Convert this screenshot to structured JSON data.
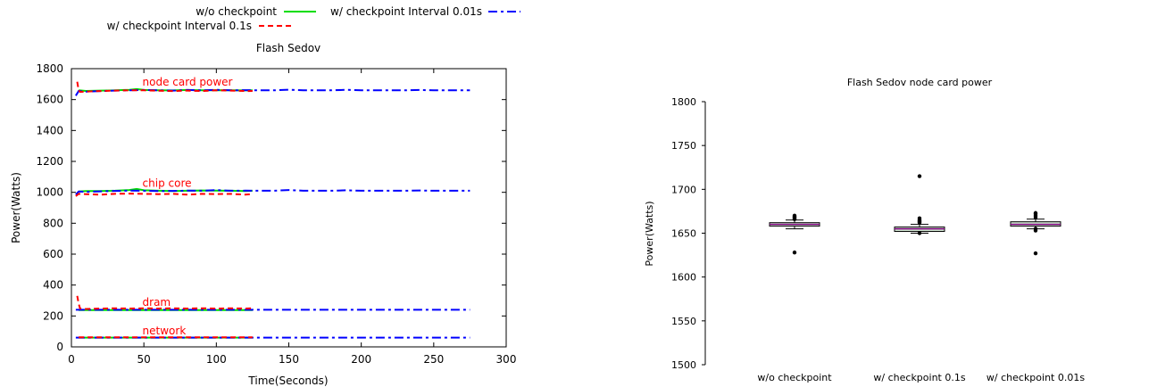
{
  "chart_data": [
    {
      "type": "line",
      "title": "Flash Sedov",
      "xlabel": "Time(Seconds)",
      "ylabel": "Power(Watts)",
      "xlim": [
        0,
        300
      ],
      "ylim": [
        0,
        1800
      ],
      "x_ticks": [
        "0",
        "50",
        "100",
        "150",
        "200",
        "250",
        "300"
      ],
      "y_ticks": [
        "0",
        "200",
        "400",
        "600",
        "800",
        "1000",
        "1200",
        "1400",
        "1600",
        "1800"
      ],
      "grid": false,
      "legend_position": "top",
      "legend": [
        {
          "label": "w/o checkpoint",
          "color": "#00dd00",
          "dash": "solid"
        },
        {
          "label": "w/ checkpoint Interval 0.01s",
          "color": "#0000ff",
          "dash": "dashdot"
        },
        {
          "label": "w/ checkpoint Interval 0.1s",
          "color": "#ff0000",
          "dash": "dashed"
        }
      ],
      "annotations": [
        {
          "text": "node card power",
          "x": 49,
          "y": 1690,
          "color": "#ff0000"
        },
        {
          "text": "chip core",
          "x": 49,
          "y": 1035,
          "color": "#ff0000"
        },
        {
          "text": "dram",
          "x": 49,
          "y": 265,
          "color": "#ff0000"
        },
        {
          "text": "network",
          "x": 49,
          "y": 80,
          "color": "#ff0000"
        }
      ],
      "series": [
        {
          "name": "w/o checkpoint",
          "color": "#00dd00",
          "dash": "solid",
          "groups": [
            {
              "x": [
                5,
                10,
                20,
                30,
                40,
                45,
                50,
                60,
                70,
                80,
                90,
                100,
                110,
                120,
                125
              ],
              "y": [
                1660,
                1656,
                1658,
                1660,
                1663,
                1668,
                1662,
                1660,
                1659,
                1662,
                1660,
                1661,
                1660,
                1659,
                1660
              ]
            },
            {
              "x": [
                5,
                10,
                20,
                30,
                40,
                45,
                50,
                60,
                70,
                80,
                90,
                100,
                110,
                120,
                125
              ],
              "y": [
                1005,
                1008,
                1008,
                1010,
                1015,
                1022,
                1013,
                1010,
                1008,
                1010,
                1012,
                1011,
                1010,
                1008,
                1010
              ]
            },
            {
              "x": [
                5,
                125
              ],
              "y": [
                238,
                238
              ]
            },
            {
              "x": [
                5,
                125
              ],
              "y": [
                60,
                60
              ]
            }
          ]
        },
        {
          "name": "w/ checkpoint Interval 0.01s",
          "color": "#0000ff",
          "dash": "dashdot",
          "groups": [
            {
              "x": [
                3,
                5,
                10,
                20,
                30,
                40,
                50,
                60,
                70,
                80,
                90,
                100,
                110,
                120,
                130,
                140,
                150,
                160,
                170,
                180,
                190,
                200,
                210,
                220,
                230,
                240,
                250,
                260,
                270,
                275
              ],
              "y": [
                1625,
                1655,
                1652,
                1655,
                1658,
                1660,
                1662,
                1660,
                1658,
                1662,
                1660,
                1663,
                1660,
                1661,
                1660,
                1660,
                1664,
                1660,
                1660,
                1660,
                1663,
                1660,
                1660,
                1660,
                1660,
                1662,
                1660,
                1660,
                1660,
                1660
              ]
            },
            {
              "x": [
                3,
                5,
                10,
                20,
                30,
                40,
                50,
                60,
                70,
                80,
                90,
                100,
                110,
                120,
                130,
                140,
                150,
                160,
                170,
                180,
                190,
                200,
                210,
                220,
                230,
                240,
                250,
                260,
                270,
                275
              ],
              "y": [
                985,
                1005,
                1003,
                1006,
                1009,
                1011,
                1010,
                1008,
                1009,
                1011,
                1010,
                1014,
                1010,
                1011,
                1010,
                1010,
                1015,
                1010,
                1010,
                1010,
                1013,
                1010,
                1010,
                1010,
                1010,
                1012,
                1010,
                1010,
                1010,
                1010
              ]
            },
            {
              "x": [
                3,
                275
              ],
              "y": [
                240,
                240
              ]
            },
            {
              "x": [
                3,
                275
              ],
              "y": [
                60,
                60
              ]
            }
          ]
        },
        {
          "name": "w/ checkpoint Interval 0.1s",
          "color": "#ff0000",
          "dash": "dashed",
          "groups": [
            {
              "x": [
                4,
                5,
                6,
                10,
                20,
                30,
                40,
                50,
                60,
                70,
                80,
                90,
                100,
                110,
                120,
                125
              ],
              "y": [
                1715,
                1660,
                1650,
                1652,
                1655,
                1658,
                1660,
                1660,
                1657,
                1655,
                1658,
                1655,
                1660,
                1658,
                1655,
                1656
              ]
            },
            {
              "x": [
                3,
                5,
                10,
                20,
                30,
                40,
                50,
                60,
                70,
                80,
                90,
                100,
                110,
                120,
                125
              ],
              "y": [
                975,
                990,
                988,
                985,
                990,
                992,
                990,
                988,
                990,
                985,
                990,
                988,
                990,
                985,
                988
              ]
            },
            {
              "x": [
                4,
                5,
                6,
                10,
                20,
                30,
                40,
                50,
                60,
                70,
                80,
                90,
                100,
                110,
                120,
                125
              ],
              "y": [
                330,
                280,
                248,
                245,
                248,
                250,
                248,
                250,
                248,
                250,
                248,
                250,
                248,
                250,
                248,
                250
              ]
            },
            {
              "x": [
                5,
                125
              ],
              "y": [
                62,
                62
              ]
            }
          ]
        }
      ]
    },
    {
      "type": "box",
      "title": "Flash Sedov node card power",
      "ylabel": "Power(Watts)",
      "ylim": [
        1500,
        1800
      ],
      "y_ticks": [
        "1500",
        "1550",
        "1600",
        "1650",
        "1700",
        "1750",
        "1800"
      ],
      "categories": [
        "w/o checkpoint",
        "w/ checkpoint 0.1s",
        "w/ checkpoint 0.01s"
      ],
      "boxes": [
        {
          "whisker_low": 1655,
          "q1": 1658,
          "median": 1660,
          "q3": 1662,
          "whisker_high": 1665,
          "outliers": [
            1628,
            1666,
            1667,
            1668,
            1669,
            1670
          ]
        },
        {
          "whisker_low": 1650,
          "q1": 1652,
          "median": 1655,
          "q3": 1657,
          "whisker_high": 1660,
          "outliers": [
            1650,
            1662,
            1663,
            1664,
            1665,
            1667,
            1715
          ]
        },
        {
          "whisker_low": 1655,
          "q1": 1658,
          "median": 1660,
          "q3": 1663,
          "whisker_high": 1666,
          "outliers": [
            1627,
            1653,
            1655,
            1668,
            1670,
            1672,
            1673
          ]
        }
      ]
    }
  ]
}
